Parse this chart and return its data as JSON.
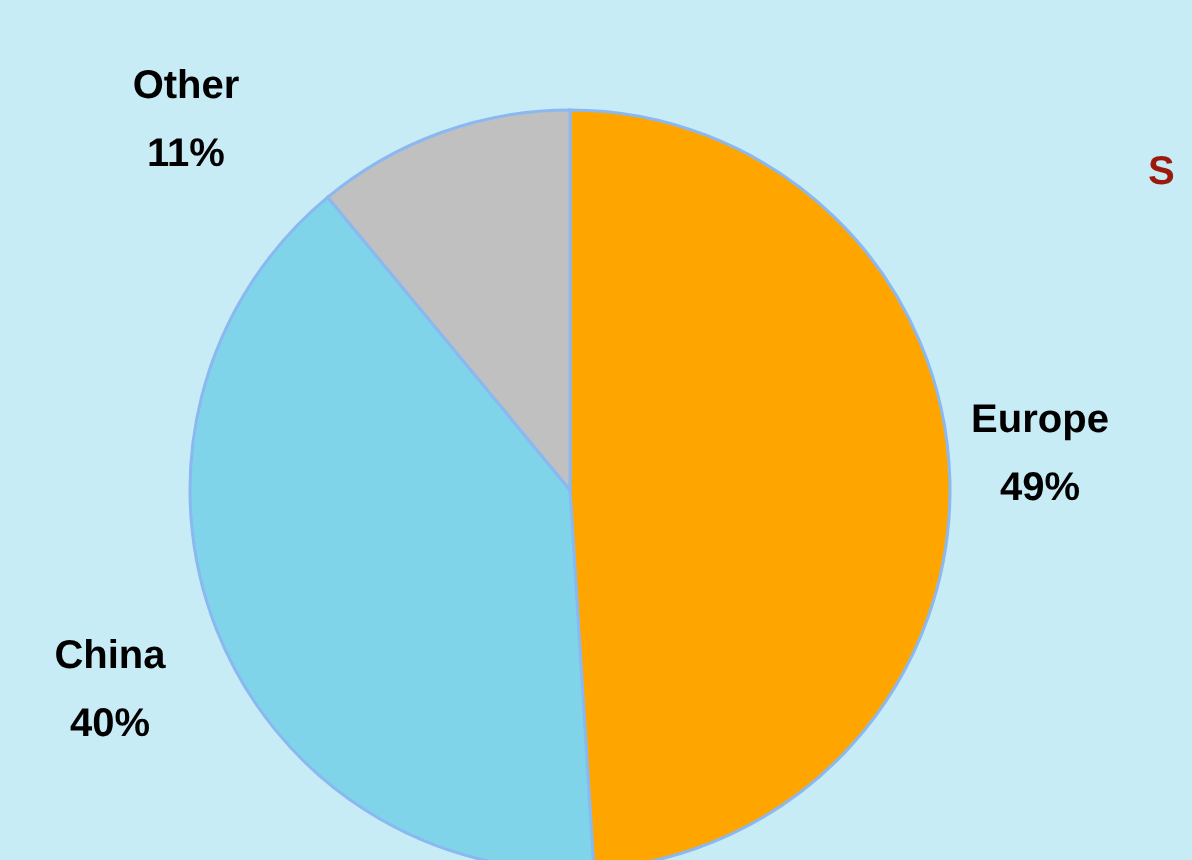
{
  "chart_data": {
    "type": "pie",
    "categories": [
      "Europe",
      "China",
      "Other"
    ],
    "values": [
      49,
      40,
      11
    ],
    "colors": [
      "#ffa500",
      "#7fd4ea",
      "#c0c0c0"
    ],
    "value_labels": [
      "49%",
      "40%",
      "11%"
    ],
    "annotations": [
      "S"
    ]
  }
}
